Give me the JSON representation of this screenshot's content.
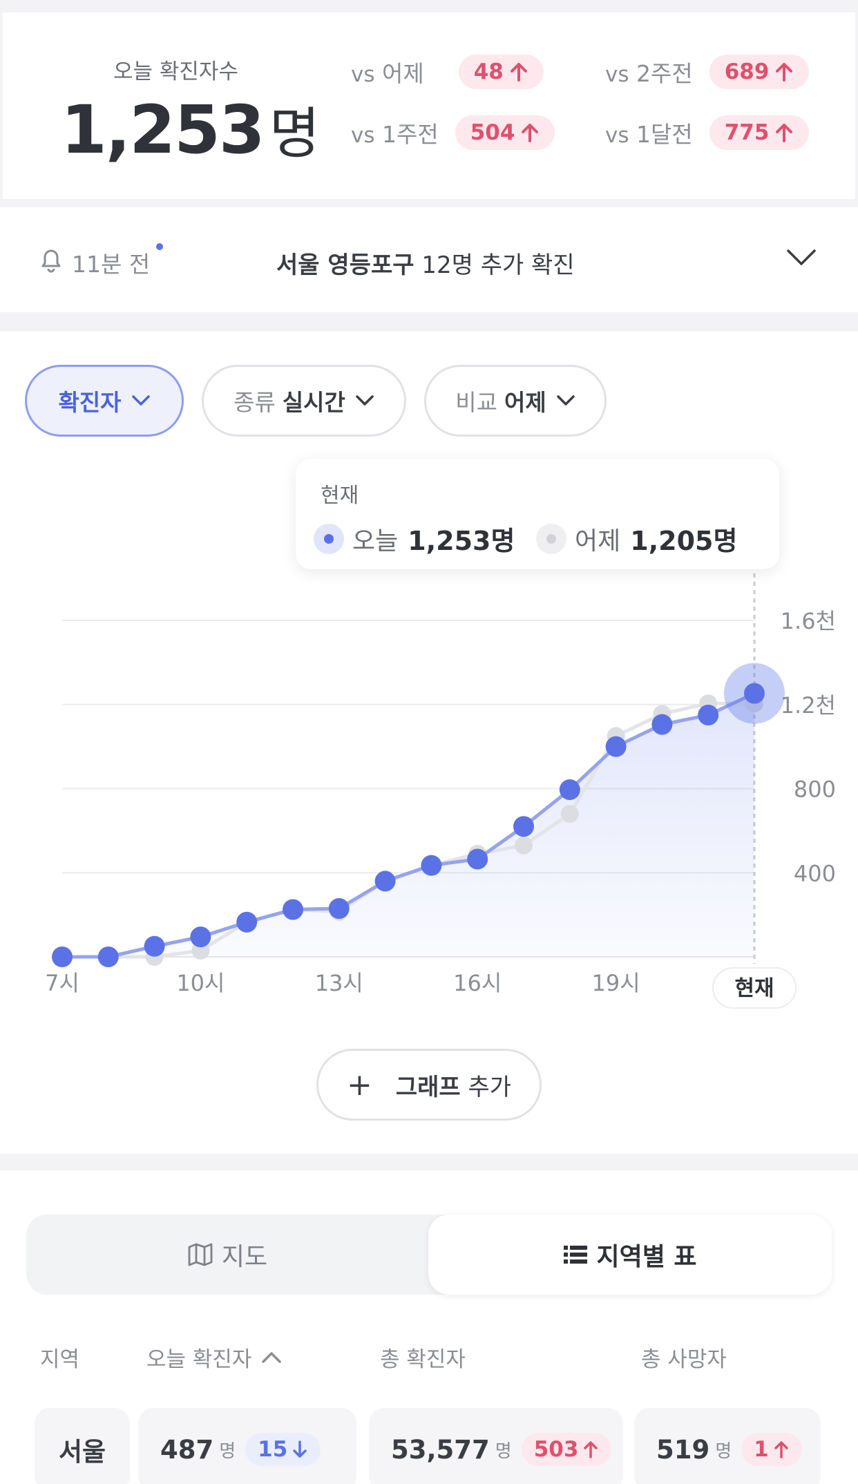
{
  "summary": {
    "label": "오늘 확진자수",
    "value": "1,253",
    "unit": "명",
    "comparisons": [
      {
        "vs": "vs",
        "label": "어제",
        "value": "48"
      },
      {
        "vs": "vs",
        "label": "2주전",
        "value": "689"
      },
      {
        "vs": "vs",
        "label": "1주전",
        "value": "504"
      },
      {
        "vs": "vs",
        "label": "1달전",
        "value": "775"
      }
    ]
  },
  "notice": {
    "time": "11분 전",
    "region": "서울 영등포구",
    "message": "12명 추가 확진"
  },
  "filters": {
    "type": "확진자",
    "kind_label": "종류",
    "kind_value": "실시간",
    "compare_label": "비교",
    "compare_value": "어제"
  },
  "tooltip": {
    "title": "현재",
    "today_label": "오늘",
    "today_value": "1,253명",
    "yesterday_label": "어제",
    "yesterday_value": "1,205명"
  },
  "chart_data": {
    "type": "area",
    "x_tick_labels": [
      "7시",
      "10시",
      "13시",
      "16시",
      "19시",
      "현재"
    ],
    "y_tick_labels": [
      "400",
      "800",
      "1.2천",
      "1.6천"
    ],
    "ylim": [
      0,
      1600
    ],
    "series": [
      {
        "name": "오늘",
        "color": "#5a72e6",
        "values": [
          0,
          0,
          50,
          95,
          165,
          225,
          230,
          360,
          435,
          465,
          620,
          795,
          1000,
          1105,
          1150,
          1253
        ]
      },
      {
        "name": "어제",
        "color": "#d7d8dd",
        "values": [
          0,
          0,
          0,
          30,
          165,
          225,
          215,
          360,
          435,
          490,
          530,
          680,
          1050,
          1155,
          1205,
          1205
        ]
      }
    ],
    "grid": true,
    "legend": "top"
  },
  "add_graph": {
    "label_bold": "그래프",
    "label": "추가"
  },
  "region_view": {
    "tab_map": "지도",
    "tab_table": "지역별 표",
    "headers": [
      "지역",
      "오늘 확진자",
      "총 확진자",
      "총 사망자"
    ],
    "rows": [
      {
        "region": "서울",
        "today": "487",
        "today_change": "15",
        "total": "53,577",
        "total_change": "503",
        "deaths": "519",
        "deaths_change": "1",
        "unit": "명"
      }
    ]
  },
  "colors": {
    "accent": "#5a72e6",
    "up": "#e0506e",
    "up_bg": "#fde8ed"
  }
}
